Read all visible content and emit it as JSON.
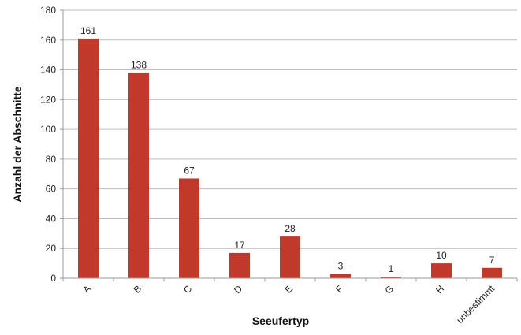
{
  "chart_data": {
    "type": "bar",
    "categories": [
      "A",
      "B",
      "C",
      "D",
      "E",
      "F",
      "G",
      "H",
      "unbestimmt"
    ],
    "values": [
      161,
      138,
      67,
      17,
      28,
      3,
      1,
      10,
      7
    ],
    "data_labels": [
      "161",
      "138",
      "67",
      "17",
      "28",
      "3",
      "1",
      "10",
      "7"
    ],
    "yticks": [
      0,
      20,
      40,
      60,
      80,
      100,
      120,
      140,
      160,
      180
    ],
    "ylim": [
      0,
      180
    ],
    "xlabel": "Seeufertyp",
    "ylabel": "Anzahl der Abschnitte",
    "grid": "horizontal",
    "bar_color": "#c0392b"
  }
}
